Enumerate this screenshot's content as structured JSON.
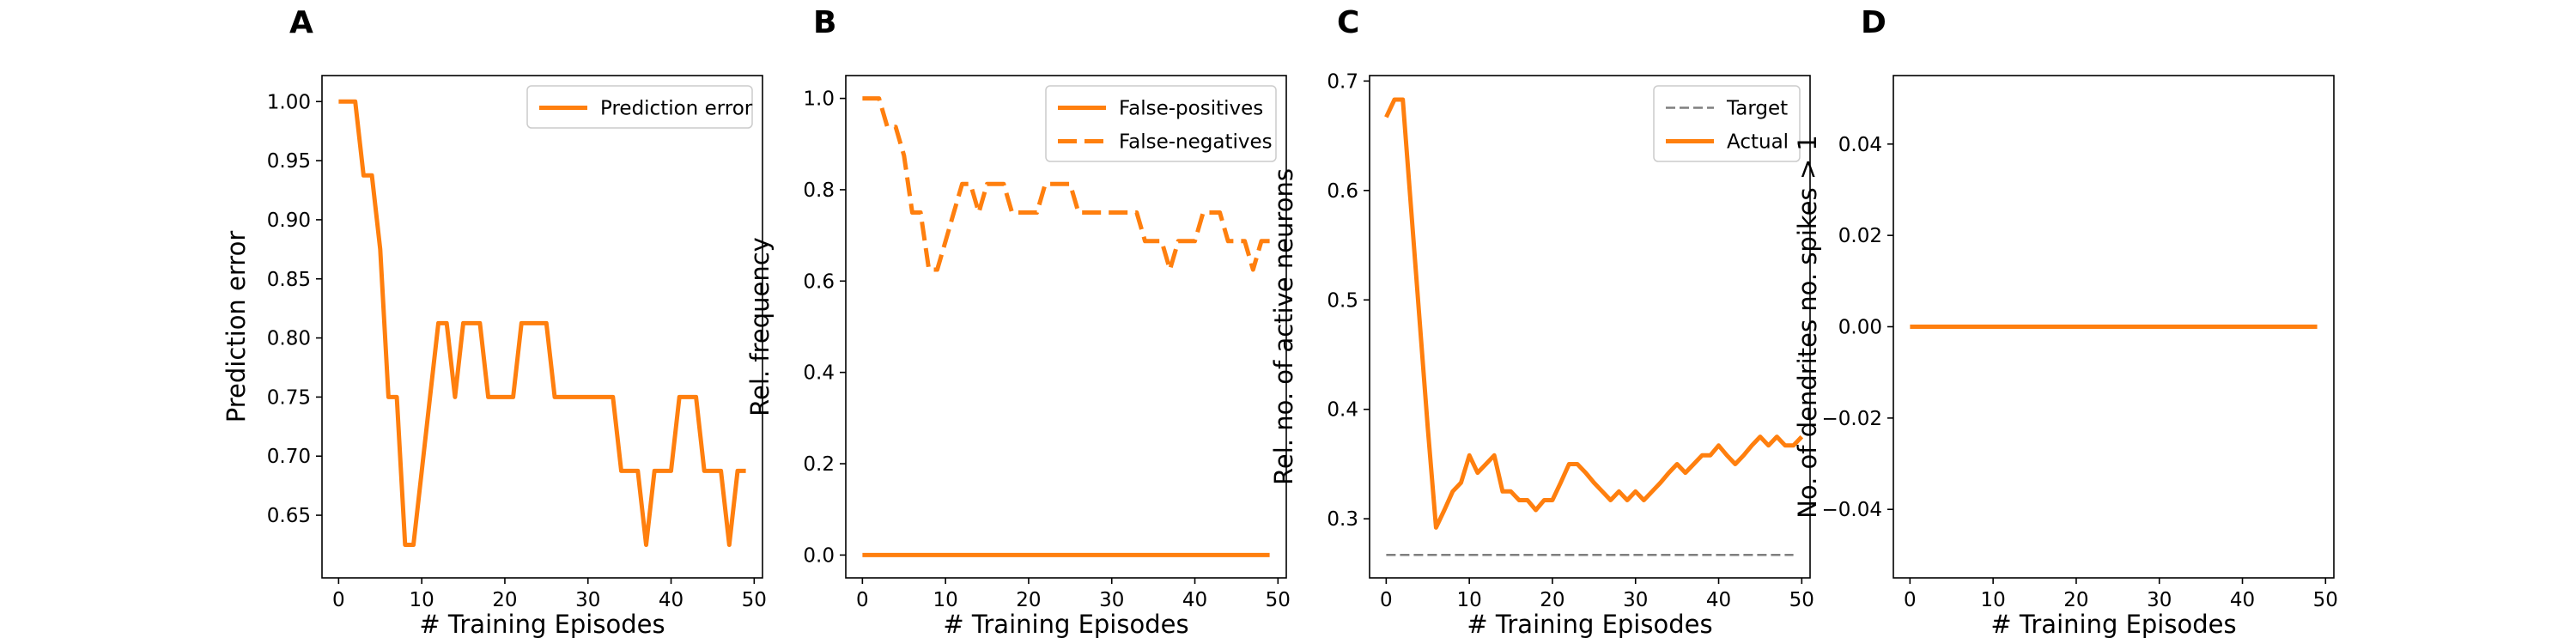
{
  "figure": {
    "panel_letters": [
      "A",
      "B",
      "C",
      "D"
    ]
  },
  "chart_data": [
    {
      "type": "line",
      "panel": "A",
      "xlabel": "# Training Episodes",
      "ylabel": "Prediction error",
      "xlim": [
        -2,
        51
      ],
      "ylim": [
        0.597,
        1.022
      ],
      "xticks": [
        0,
        10,
        20,
        30,
        40,
        50
      ],
      "yticks": [
        0.65,
        0.7,
        0.75,
        0.8,
        0.85,
        0.9,
        0.95,
        1.0
      ],
      "ytick_labels": [
        "0.65",
        "0.70",
        "0.75",
        "0.80",
        "0.85",
        "0.90",
        "0.95",
        "1.00"
      ],
      "grid": false,
      "legend": "upper-right",
      "series": [
        {
          "name": "Prediction error",
          "style": "solid",
          "color": "#ff7f0e",
          "x": [
            0,
            1,
            2,
            3,
            4,
            5,
            6,
            7,
            8,
            9,
            10,
            11,
            12,
            13,
            14,
            15,
            16,
            17,
            18,
            19,
            20,
            21,
            22,
            23,
            24,
            25,
            26,
            27,
            28,
            29,
            30,
            31,
            32,
            33,
            34,
            35,
            36,
            37,
            38,
            39,
            40,
            41,
            42,
            43,
            44,
            45,
            46,
            47,
            48,
            49
          ],
          "y": [
            1.0,
            1.0,
            1.0,
            0.9375,
            0.9375,
            0.875,
            0.75,
            0.75,
            0.625,
            0.625,
            0.6875,
            0.75,
            0.8125,
            0.8125,
            0.75,
            0.8125,
            0.8125,
            0.8125,
            0.75,
            0.75,
            0.75,
            0.75,
            0.8125,
            0.8125,
            0.8125,
            0.8125,
            0.75,
            0.75,
            0.75,
            0.75,
            0.75,
            0.75,
            0.75,
            0.75,
            0.6875,
            0.6875,
            0.6875,
            0.625,
            0.6875,
            0.6875,
            0.6875,
            0.75,
            0.75,
            0.75,
            0.6875,
            0.6875,
            0.6875,
            0.625,
            0.6875,
            0.6875
          ]
        }
      ]
    },
    {
      "type": "line",
      "panel": "B",
      "xlabel": "# Training Episodes",
      "ylabel": "Rel. frequency",
      "xlim": [
        -2,
        51
      ],
      "ylim": [
        -0.05,
        1.05
      ],
      "xticks": [
        0,
        10,
        20,
        30,
        40,
        50
      ],
      "yticks": [
        0.0,
        0.2,
        0.4,
        0.6,
        0.8,
        1.0
      ],
      "ytick_labels": [
        "0.0",
        "0.2",
        "0.4",
        "0.6",
        "0.8",
        "1.0"
      ],
      "grid": false,
      "legend": "upper-right",
      "series": [
        {
          "name": "False-positives",
          "style": "solid",
          "color": "#ff7f0e",
          "x": [
            0,
            49
          ],
          "y": [
            0.0,
            0.0
          ]
        },
        {
          "name": "False-negatives",
          "style": "dashed",
          "color": "#ff7f0e",
          "x": [
            0,
            1,
            2,
            3,
            4,
            5,
            6,
            7,
            8,
            9,
            10,
            11,
            12,
            13,
            14,
            15,
            16,
            17,
            18,
            19,
            20,
            21,
            22,
            23,
            24,
            25,
            26,
            27,
            28,
            29,
            30,
            31,
            32,
            33,
            34,
            35,
            36,
            37,
            38,
            39,
            40,
            41,
            42,
            43,
            44,
            45,
            46,
            47,
            48,
            49
          ],
          "y": [
            1.0,
            1.0,
            1.0,
            0.9375,
            0.9375,
            0.875,
            0.75,
            0.75,
            0.625,
            0.625,
            0.6875,
            0.75,
            0.8125,
            0.8125,
            0.75,
            0.8125,
            0.8125,
            0.8125,
            0.75,
            0.75,
            0.75,
            0.75,
            0.8125,
            0.8125,
            0.8125,
            0.8125,
            0.75,
            0.75,
            0.75,
            0.75,
            0.75,
            0.75,
            0.75,
            0.75,
            0.6875,
            0.6875,
            0.6875,
            0.625,
            0.6875,
            0.6875,
            0.6875,
            0.75,
            0.75,
            0.75,
            0.6875,
            0.6875,
            0.6875,
            0.625,
            0.6875,
            0.6875
          ]
        }
      ]
    },
    {
      "type": "line",
      "panel": "C",
      "xlabel": "# Training Episodes",
      "ylabel": "Rel. no. of active neurons",
      "xlim": [
        -2,
        51
      ],
      "ylim": [
        0.246,
        0.705
      ],
      "xticks": [
        0,
        10,
        20,
        30,
        40,
        50
      ],
      "yticks": [
        0.3,
        0.4,
        0.5,
        0.6,
        0.7
      ],
      "ytick_labels": [
        "0.3",
        "0.4",
        "0.5",
        "0.6",
        "0.7"
      ],
      "grid": false,
      "legend": "upper-right",
      "series": [
        {
          "name": "Target",
          "style": "dashed",
          "color": "#7f7f7f",
          "x": [
            0,
            49
          ],
          "y": [
            0.267,
            0.267
          ]
        },
        {
          "name": "Actual",
          "style": "solid",
          "color": "#ff7f0e",
          "x": [
            0,
            1,
            2,
            3,
            4,
            5,
            6,
            7,
            8,
            9,
            10,
            11,
            12,
            13,
            14,
            15,
            16,
            17,
            18,
            19,
            20,
            21,
            22,
            23,
            24,
            25,
            26,
            27,
            28,
            29,
            30,
            31,
            32,
            33,
            34,
            35,
            36,
            37,
            38,
            39,
            40,
            41,
            42,
            43,
            44,
            45,
            46,
            47,
            48,
            49,
            50
          ],
          "y": [
            0.667,
            0.683,
            0.683,
            0.583,
            0.483,
            0.383,
            0.292,
            0.308,
            0.325,
            0.333,
            0.358,
            0.342,
            0.35,
            0.358,
            0.325,
            0.325,
            0.317,
            0.317,
            0.308,
            0.317,
            0.317,
            0.333,
            0.35,
            0.35,
            0.342,
            0.333,
            0.325,
            0.317,
            0.325,
            0.317,
            0.325,
            0.317,
            0.325,
            0.333,
            0.342,
            0.35,
            0.342,
            0.35,
            0.358,
            0.358,
            0.367,
            0.358,
            0.35,
            0.358,
            0.367,
            0.375,
            0.367,
            0.375,
            0.367,
            0.367,
            0.375
          ]
        }
      ]
    },
    {
      "type": "line",
      "panel": "D",
      "xlabel": "# Training Episodes",
      "ylabel": "No. of dendrites no. spikes > 1",
      "xlim": [
        -2,
        51
      ],
      "ylim": [
        -0.055,
        0.055
      ],
      "xticks": [
        0,
        10,
        20,
        30,
        40,
        50
      ],
      "yticks": [
        -0.04,
        -0.02,
        0.0,
        0.02,
        0.04
      ],
      "ytick_labels": [
        "−0.04",
        "−0.02",
        "0.00",
        "0.02",
        "0.04"
      ],
      "grid": false,
      "legend": "none",
      "series": [
        {
          "style": "solid",
          "color": "#ff7f0e",
          "x": [
            0,
            49
          ],
          "y": [
            0.0,
            0.0
          ]
        }
      ]
    }
  ]
}
